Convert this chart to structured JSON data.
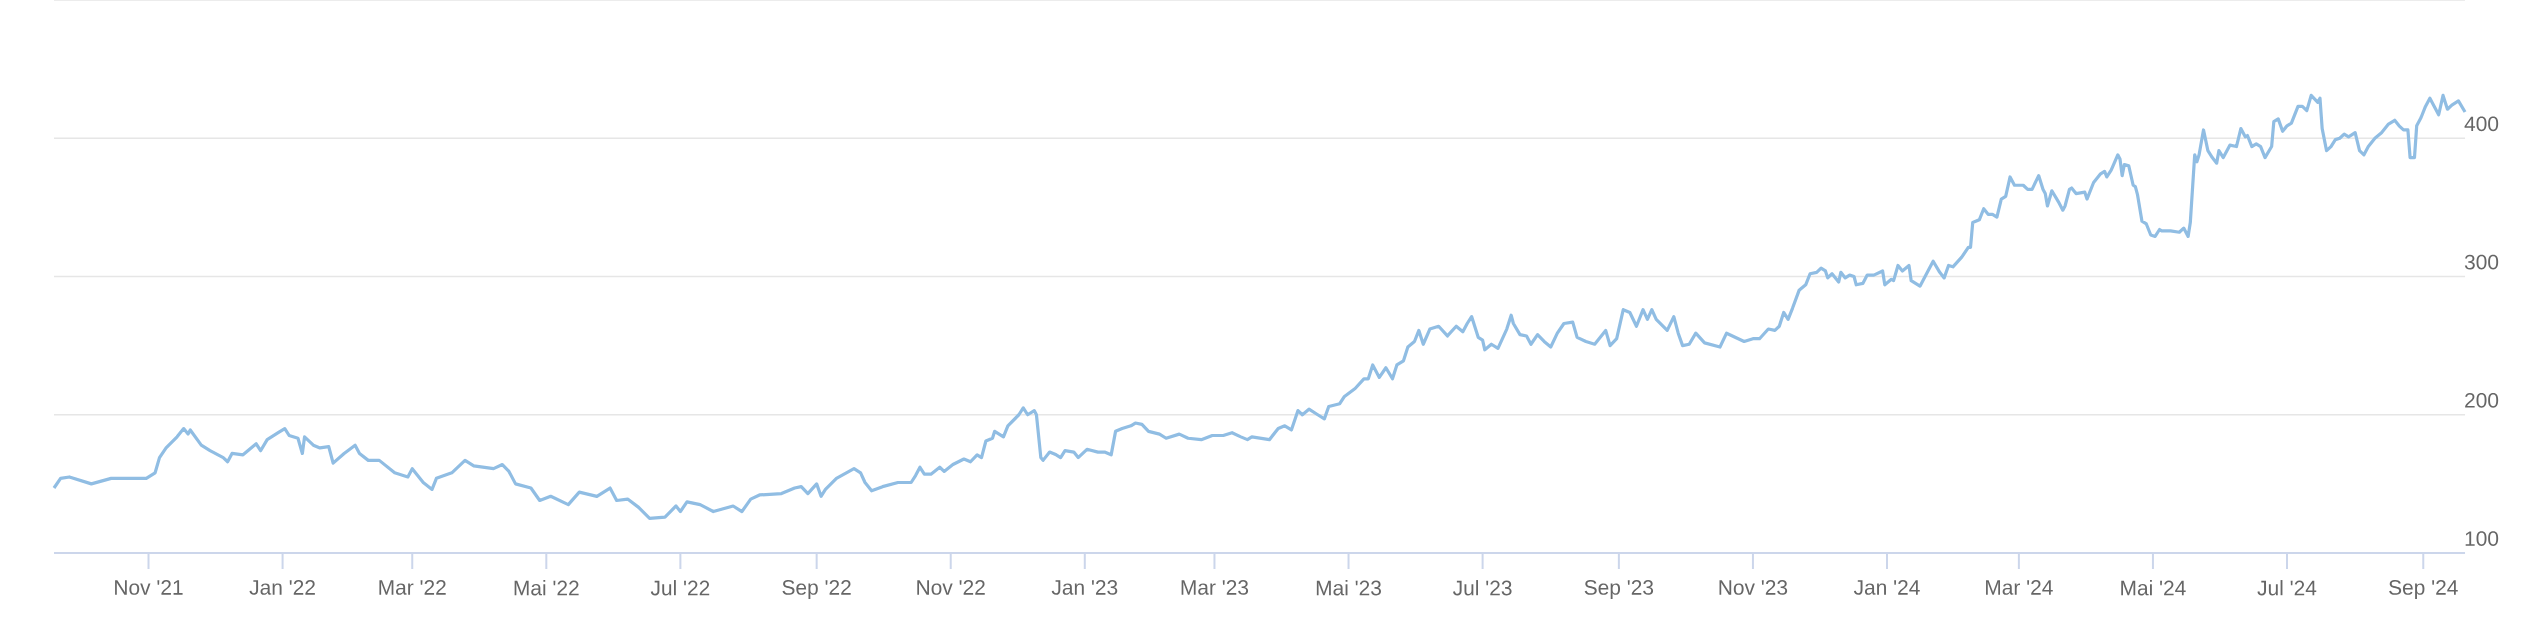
{
  "chart_data": {
    "type": "line",
    "x": [
      "2021-09-19",
      "2021-09-22",
      "2021-09-26",
      "2021-10-06",
      "2021-10-15",
      "2021-10-31",
      "2021-11-04",
      "2021-11-06",
      "2021-11-09",
      "2021-11-14",
      "2021-11-17",
      "2021-11-19",
      "2021-11-20",
      "2021-11-25",
      "2021-11-29",
      "2021-12-05",
      "2021-12-07",
      "2021-12-09",
      "2021-12-14",
      "2021-12-20",
      "2021-12-22",
      "2021-12-25",
      "2021-12-30",
      "2022-01-02",
      "2022-01-04",
      "2022-01-08",
      "2022-01-10",
      "2022-01-11",
      "2022-01-15",
      "2022-01-18",
      "2022-01-22",
      "2022-01-24",
      "2022-01-29",
      "2022-02-03",
      "2022-02-05",
      "2022-02-09",
      "2022-02-14",
      "2022-02-21",
      "2022-02-27",
      "2022-03-01",
      "2022-03-06",
      "2022-03-10",
      "2022-03-12",
      "2022-03-19",
      "2022-03-25",
      "2022-03-29",
      "2022-04-07",
      "2022-04-11",
      "2022-04-14",
      "2022-04-17",
      "2022-04-24",
      "2022-04-28",
      "2022-05-03",
      "2022-05-11",
      "2022-05-16",
      "2022-05-24",
      "2022-05-30",
      "2022-06-02",
      "2022-06-07",
      "2022-06-12",
      "2022-06-17",
      "2022-06-24",
      "2022-06-29",
      "2022-07-01",
      "2022-07-04",
      "2022-07-10",
      "2022-07-16",
      "2022-07-25",
      "2022-07-29",
      "2022-08-02",
      "2022-08-06",
      "2022-08-16",
      "2022-08-22",
      "2022-08-25",
      "2022-08-28",
      "2022-09-01",
      "2022-09-03",
      "2022-09-05",
      "2022-09-10",
      "2022-09-18",
      "2022-09-21",
      "2022-09-23",
      "2022-09-26",
      "2022-10-01",
      "2022-10-08",
      "2022-10-14",
      "2022-10-16",
      "2022-10-18",
      "2022-10-20",
      "2022-10-23",
      "2022-10-27",
      "2022-10-29",
      "2022-11-02",
      "2022-11-07",
      "2022-11-10",
      "2022-11-13",
      "2022-11-15",
      "2022-11-17",
      "2022-11-20",
      "2022-11-21",
      "2022-11-25",
      "2022-11-27",
      "2022-12-02",
      "2022-12-04",
      "2022-12-06",
      "2022-12-09",
      "2022-12-10",
      "2022-12-12",
      "2022-12-13",
      "2022-12-16",
      "2022-12-19",
      "2022-12-21",
      "2022-12-23",
      "2022-12-27",
      "2022-12-29",
      "2023-01-02",
      "2023-01-07",
      "2023-01-10",
      "2023-01-13",
      "2023-01-15",
      "2023-01-18",
      "2023-01-22",
      "2023-01-24",
      "2023-01-27",
      "2023-01-30",
      "2023-02-04",
      "2023-02-07",
      "2023-02-13",
      "2023-02-17",
      "2023-02-23",
      "2023-02-28",
      "2023-03-05",
      "2023-03-09",
      "2023-03-13",
      "2023-03-16",
      "2023-03-18",
      "2023-03-26",
      "2023-03-30",
      "2023-04-02",
      "2023-04-05",
      "2023-04-08",
      "2023-04-10",
      "2023-04-13",
      "2023-04-17",
      "2023-04-20",
      "2023-04-22",
      "2023-04-27",
      "2023-04-29",
      "2023-05-04",
      "2023-05-08",
      "2023-05-10",
      "2023-05-12",
      "2023-05-15",
      "2023-05-18",
      "2023-05-21",
      "2023-05-23",
      "2023-05-26",
      "2023-05-28",
      "2023-05-31",
      "2023-06-02",
      "2023-06-04",
      "2023-06-07",
      "2023-06-11",
      "2023-06-15",
      "2023-06-19",
      "2023-06-22",
      "2023-06-24",
      "2023-06-26",
      "2023-06-29",
      "2023-07-01",
      "2023-07-02",
      "2023-07-05",
      "2023-07-08",
      "2023-07-12",
      "2023-07-14",
      "2023-07-15",
      "2023-07-18",
      "2023-07-21",
      "2023-07-23",
      "2023-07-26",
      "2023-07-29",
      "2023-08-01",
      "2023-08-04",
      "2023-08-07",
      "2023-08-11",
      "2023-08-13",
      "2023-08-17",
      "2023-08-21",
      "2023-08-26",
      "2023-08-28",
      "2023-08-31",
      "2023-09-03",
      "2023-09-06",
      "2023-09-09",
      "2023-09-12",
      "2023-09-14",
      "2023-09-16",
      "2023-09-18",
      "2023-09-23",
      "2023-09-26",
      "2023-09-28",
      "2023-09-30",
      "2023-10-03",
      "2023-10-06",
      "2023-10-10",
      "2023-10-17",
      "2023-10-20",
      "2023-10-28",
      "2023-11-01",
      "2023-11-04",
      "2023-11-08",
      "2023-11-11",
      "2023-11-13",
      "2023-11-15",
      "2023-11-17",
      "2023-11-19",
      "2023-11-22",
      "2023-11-25",
      "2023-11-27",
      "2023-11-30",
      "2023-12-02",
      "2023-12-04",
      "2023-12-05",
      "2023-12-07",
      "2023-12-10",
      "2023-12-11",
      "2023-12-13",
      "2023-12-15",
      "2023-12-17",
      "2023-12-18",
      "2023-12-21",
      "2023-12-23",
      "2023-12-26",
      "2023-12-30",
      "2023-12-31",
      "2024-01-03",
      "2024-01-04",
      "2024-01-06",
      "2024-01-08",
      "2024-01-11",
      "2024-01-12",
      "2024-01-16",
      "2024-01-18",
      "2024-01-20",
      "2024-01-22",
      "2024-01-25",
      "2024-01-27",
      "2024-01-29",
      "2024-01-31",
      "2024-02-04",
      "2024-02-07",
      "2024-02-08",
      "2024-02-09",
      "2024-02-12",
      "2024-02-14",
      "2024-02-16",
      "2024-02-18",
      "2024-02-20",
      "2024-02-22",
      "2024-02-24",
      "2024-02-26",
      "2024-02-28",
      "2024-03-03",
      "2024-03-05",
      "2024-03-07",
      "2024-03-10",
      "2024-03-12",
      "2024-03-13",
      "2024-03-14",
      "2024-03-16",
      "2024-03-19",
      "2024-03-21",
      "2024-03-22",
      "2024-03-24",
      "2024-03-25",
      "2024-03-27",
      "2024-03-31",
      "2024-04-01",
      "2024-04-04",
      "2024-04-07",
      "2024-04-09",
      "2024-04-10",
      "2024-04-12",
      "2024-04-15",
      "2024-04-16",
      "2024-04-17",
      "2024-04-18",
      "2024-04-20",
      "2024-04-22",
      "2024-04-23",
      "2024-04-24",
      "2024-04-26",
      "2024-04-28",
      "2024-04-30",
      "2024-05-02",
      "2024-05-04",
      "2024-05-05",
      "2024-05-09",
      "2024-05-13",
      "2024-05-15",
      "2024-05-17",
      "2024-05-18",
      "2024-05-20",
      "2024-05-21",
      "2024-05-22",
      "2024-05-24",
      "2024-05-26",
      "2024-05-28",
      "2024-05-30",
      "2024-05-31",
      "2024-06-02",
      "2024-06-05",
      "2024-06-08",
      "2024-06-10",
      "2024-06-12",
      "2024-06-13",
      "2024-06-15",
      "2024-06-17",
      "2024-06-19",
      "2024-06-21",
      "2024-06-24",
      "2024-06-25",
      "2024-06-27",
      "2024-06-29",
      "2024-07-01",
      "2024-07-03",
      "2024-07-06",
      "2024-07-08",
      "2024-07-10",
      "2024-07-12",
      "2024-07-15",
      "2024-07-16",
      "2024-07-17",
      "2024-07-19",
      "2024-07-21",
      "2024-07-23",
      "2024-07-25",
      "2024-07-27",
      "2024-07-29",
      "2024-08-01",
      "2024-08-03",
      "2024-08-05",
      "2024-08-07",
      "2024-08-10",
      "2024-08-13",
      "2024-08-16",
      "2024-08-19",
      "2024-08-21",
      "2024-08-23",
      "2024-08-25",
      "2024-08-26",
      "2024-08-28",
      "2024-08-29",
      "2024-08-31",
      "2024-09-02",
      "2024-09-04",
      "2024-09-06",
      "2024-09-08",
      "2024-09-10",
      "2024-09-12",
      "2024-09-14",
      "2024-09-17",
      "2024-09-20"
    ],
    "series": [
      {
        "color": "#90bde3",
        "values": [
          147,
          154,
          155,
          150,
          154,
          154,
          158,
          169,
          176,
          184,
          190,
          186,
          189,
          178,
          174,
          169,
          166,
          172,
          171,
          179,
          174,
          182,
          187,
          190,
          185,
          183,
          172,
          184,
          178,
          176,
          177,
          165,
          172,
          178,
          172,
          167,
          167,
          158,
          155,
          161,
          151,
          146,
          154,
          158,
          167,
          163,
          161,
          164,
          159,
          150,
          147,
          138,
          141,
          135,
          144,
          141,
          147,
          138,
          139,
          133,
          125,
          126,
          134,
          130,
          137,
          135,
          130,
          134,
          130,
          139,
          142,
          143,
          147,
          148,
          143,
          150,
          141,
          146,
          154,
          161,
          158,
          151,
          145,
          148,
          151,
          151,
          156,
          162,
          157,
          157,
          162,
          159,
          164,
          168,
          166,
          171,
          169,
          181,
          183,
          188,
          184,
          192,
          200,
          205,
          200,
          203,
          200,
          169,
          167,
          173,
          171,
          169,
          174,
          173,
          169,
          175,
          173,
          173,
          171,
          188,
          190,
          192,
          194,
          193,
          188,
          186,
          183,
          186,
          183,
          182,
          185,
          185,
          187,
          184,
          182,
          184,
          182,
          190,
          192,
          189,
          203,
          200,
          204,
          200,
          197,
          206,
          208,
          213,
          219,
          226,
          226,
          236,
          227,
          234,
          226,
          236,
          239,
          249,
          253,
          261,
          251,
          262,
          264,
          257,
          264,
          260,
          266,
          271,
          256,
          254,
          247,
          251,
          248,
          262,
          272,
          266,
          258,
          257,
          251,
          258,
          253,
          249,
          259,
          266,
          267,
          256,
          253,
          251,
          261,
          250,
          255,
          276,
          274,
          264,
          276,
          269,
          276,
          269,
          261,
          271,
          259,
          250,
          251,
          259,
          252,
          249,
          259,
          253,
          255,
          255,
          262,
          261,
          264,
          274,
          269,
          277,
          290,
          294,
          302,
          303,
          306,
          304,
          299,
          302,
          296,
          303,
          299,
          301,
          300,
          294,
          295,
          301,
          301,
          304,
          294,
          298,
          297,
          308,
          304,
          308,
          297,
          293,
          299,
          305,
          311,
          303,
          299,
          308,
          307,
          314,
          321,
          321,
          339,
          341,
          349,
          345,
          345,
          343,
          356,
          358,
          372,
          366,
          366,
          363,
          363,
          373,
          363,
          360,
          351,
          362,
          354,
          348,
          351,
          363,
          364,
          360,
          361,
          356,
          368,
          374,
          376,
          372,
          377,
          388,
          385,
          373,
          381,
          380,
          366,
          365,
          359,
          340,
          338,
          330,
          329,
          334,
          333,
          333,
          332,
          335,
          329,
          339,
          388,
          383,
          388,
          406,
          391,
          386,
          382,
          391,
          386,
          395,
          394,
          407,
          401,
          402,
          394,
          396,
          394,
          386,
          394,
          412,
          414,
          405,
          409,
          411,
          423,
          423,
          420,
          431,
          426,
          429,
          407,
          391,
          394,
          399,
          400,
          403,
          401,
          404,
          391,
          388,
          394,
          400,
          404,
          410,
          413,
          409,
          406,
          406,
          386,
          386,
          409,
          415,
          423,
          429,
          423,
          417,
          431,
          421,
          424,
          427,
          419
        ]
      }
    ],
    "xlim": [
      "2021-09-19",
      "2024-09-20"
    ],
    "xticks": [
      {
        "value": "2021-11-01",
        "label": "Nov '21"
      },
      {
        "value": "2022-01-01",
        "label": "Jan '22"
      },
      {
        "value": "2022-03-01",
        "label": "Mar '22"
      },
      {
        "value": "2022-05-01",
        "label": "Mai '22"
      },
      {
        "value": "2022-07-01",
        "label": "Jul '22"
      },
      {
        "value": "2022-09-01",
        "label": "Sep '22"
      },
      {
        "value": "2022-11-01",
        "label": "Nov '22"
      },
      {
        "value": "2023-01-01",
        "label": "Jan '23"
      },
      {
        "value": "2023-03-01",
        "label": "Mar '23"
      },
      {
        "value": "2023-05-01",
        "label": "Mai '23"
      },
      {
        "value": "2023-07-01",
        "label": "Jul '23"
      },
      {
        "value": "2023-09-01",
        "label": "Sep '23"
      },
      {
        "value": "2023-11-01",
        "label": "Nov '23"
      },
      {
        "value": "2024-01-01",
        "label": "Jan '24"
      },
      {
        "value": "2024-03-01",
        "label": "Mar '24"
      },
      {
        "value": "2024-05-01",
        "label": "Mai '24"
      },
      {
        "value": "2024-07-01",
        "label": "Jul '24"
      },
      {
        "value": "2024-09-01",
        "label": "Sep '24"
      }
    ],
    "ylim": [
      100,
      500
    ],
    "yticks": [
      100,
      200,
      300,
      400,
      {
        "value": 500,
        "label": null
      }
    ],
    "grid": "y",
    "marker": "none",
    "line_style": "solid"
  }
}
